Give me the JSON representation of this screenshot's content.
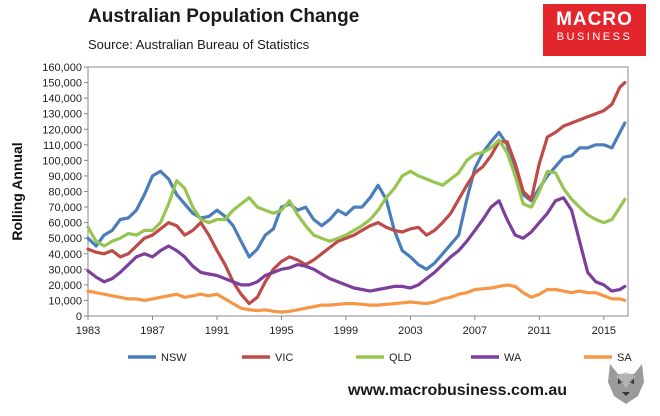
{
  "header": {
    "title": "Australian Population Change",
    "subtitle": "Source: Australian Bureau of Statistics"
  },
  "logo": {
    "line1": "MACRO",
    "line2": "BUSINESS",
    "color": "#e3262b"
  },
  "footer": {
    "url": "www.macrobusiness.com.au"
  },
  "icons": {
    "mascot": "wolf-mascot-icon"
  },
  "chart_data": {
    "type": "line",
    "title": "Australian Population Change",
    "subtitle": "Source: Australian Bureau of Statistics",
    "xlabel": "",
    "ylabel": "Rolling Annual",
    "xlim": [
      1983,
      2016.5
    ],
    "ylim": [
      0,
      160000
    ],
    "yticks": [
      0,
      10000,
      20000,
      30000,
      40000,
      50000,
      60000,
      70000,
      80000,
      90000,
      100000,
      110000,
      120000,
      130000,
      140000,
      150000,
      160000
    ],
    "ytick_labels": [
      "0",
      "10,000",
      "20,000",
      "30,000",
      "40,000",
      "50,000",
      "60,000",
      "70,000",
      "80,000",
      "90,000",
      "100,000",
      "110,000",
      "120,000",
      "130,000",
      "140,000",
      "150,000",
      "160,000"
    ],
    "xticks": [
      1983,
      1987,
      1991,
      1995,
      1999,
      2003,
      2007,
      2011,
      2015
    ],
    "xtick_labels": [
      "1983",
      "1987",
      "1991",
      "1995",
      "1999",
      "2003",
      "2007",
      "2011",
      "2015"
    ],
    "grid": false,
    "legend": "bottom",
    "series": [
      {
        "name": "NSW",
        "color": "#4a7ebb",
        "x": [
          1983,
          1983.5,
          1984,
          1984.5,
          1985,
          1985.5,
          1986,
          1986.5,
          1987,
          1987.5,
          1988,
          1988.5,
          1989,
          1989.5,
          1990,
          1990.5,
          1991,
          1991.5,
          1992,
          1992.5,
          1993,
          1993.5,
          1994,
          1994.5,
          1995,
          1995.5,
          1996,
          1996.5,
          1997,
          1997.5,
          1998,
          1998.5,
          1999,
          1999.5,
          2000,
          2000.5,
          2001,
          2001.5,
          2002,
          2002.5,
          2003,
          2003.5,
          2004,
          2004.5,
          2005,
          2005.5,
          2006,
          2006.5,
          2007,
          2007.5,
          2008,
          2008.5,
          2009,
          2009.5,
          2010,
          2010.5,
          2011,
          2011.5,
          2012,
          2012.5,
          2013,
          2013.5,
          2014,
          2014.5,
          2015,
          2015.5,
          2016,
          2016.3
        ],
        "values": [
          50000,
          45000,
          52000,
          55000,
          62000,
          63000,
          68000,
          78000,
          90000,
          93000,
          88000,
          78000,
          72000,
          66000,
          63000,
          64000,
          68000,
          64000,
          58000,
          48000,
          38000,
          43000,
          52000,
          56000,
          70000,
          72000,
          68000,
          70000,
          62000,
          58000,
          62000,
          68000,
          65000,
          70000,
          70000,
          76000,
          84000,
          75000,
          55000,
          42000,
          38000,
          33000,
          30000,
          34000,
          40000,
          46000,
          52000,
          75000,
          95000,
          105000,
          112000,
          118000,
          110000,
          92000,
          78000,
          74000,
          82000,
          90000,
          96000,
          102000,
          103000,
          108000,
          108000,
          110000,
          110000,
          108000,
          118000,
          124000
        ]
      },
      {
        "name": "VIC",
        "color": "#be4b48",
        "x": [
          1983,
          1983.5,
          1984,
          1984.5,
          1985,
          1985.5,
          1986,
          1986.5,
          1987,
          1987.5,
          1988,
          1988.5,
          1989,
          1989.5,
          1990,
          1990.5,
          1991,
          1991.5,
          1992,
          1992.5,
          1993,
          1993.5,
          1994,
          1994.5,
          1995,
          1995.5,
          1996,
          1996.5,
          1997,
          1997.5,
          1998,
          1998.5,
          1999,
          1999.5,
          2000,
          2000.5,
          2001,
          2001.5,
          2002,
          2002.5,
          2003,
          2003.5,
          2004,
          2004.5,
          2005,
          2005.5,
          2006,
          2006.5,
          2007,
          2007.5,
          2008,
          2008.5,
          2009,
          2009.5,
          2010,
          2010.5,
          2011,
          2011.5,
          2012,
          2012.5,
          2013,
          2013.5,
          2014,
          2014.5,
          2015,
          2015.5,
          2016,
          2016.3
        ],
        "values": [
          43000,
          41000,
          40000,
          42000,
          38000,
          40000,
          45000,
          50000,
          52000,
          56000,
          60000,
          58000,
          52000,
          55000,
          60000,
          52000,
          42000,
          33000,
          22000,
          14000,
          8000,
          12000,
          22000,
          30000,
          35000,
          38000,
          36000,
          33000,
          36000,
          40000,
          44000,
          48000,
          50000,
          52000,
          55000,
          58000,
          60000,
          57000,
          55000,
          54000,
          56000,
          57000,
          52000,
          55000,
          60000,
          66000,
          75000,
          84000,
          92000,
          96000,
          103000,
          112000,
          112000,
          98000,
          80000,
          75000,
          98000,
          115000,
          118000,
          122000,
          124000,
          126000,
          128000,
          130000,
          132000,
          136000,
          147000,
          150000
        ]
      },
      {
        "name": "QLD",
        "color": "#98c552",
        "x": [
          1983,
          1983.5,
          1984,
          1984.5,
          1985,
          1985.5,
          1986,
          1986.5,
          1987,
          1987.5,
          1988,
          1988.5,
          1989,
          1989.5,
          1990,
          1990.5,
          1991,
          1991.5,
          1992,
          1992.5,
          1993,
          1993.5,
          1994,
          1994.5,
          1995,
          1995.5,
          1996,
          1996.5,
          1997,
          1997.5,
          1998,
          1998.5,
          1999,
          1999.5,
          2000,
          2000.5,
          2001,
          2001.5,
          2002,
          2002.5,
          2003,
          2003.5,
          2004,
          2004.5,
          2005,
          2005.5,
          2006,
          2006.5,
          2007,
          2007.5,
          2008,
          2008.5,
          2009,
          2009.5,
          2010,
          2010.5,
          2011,
          2011.5,
          2012,
          2012.5,
          2013,
          2013.5,
          2014,
          2014.5,
          2015,
          2015.5,
          2016,
          2016.3
        ],
        "values": [
          57000,
          48000,
          45000,
          48000,
          50000,
          53000,
          52000,
          55000,
          55000,
          60000,
          72000,
          87000,
          82000,
          70000,
          62000,
          60000,
          62000,
          62000,
          68000,
          72000,
          76000,
          70000,
          68000,
          66000,
          68000,
          74000,
          65000,
          58000,
          52000,
          50000,
          48000,
          50000,
          52000,
          55000,
          58000,
          62000,
          68000,
          76000,
          82000,
          90000,
          93000,
          90000,
          88000,
          86000,
          84000,
          88000,
          92000,
          100000,
          104000,
          105000,
          108000,
          113000,
          105000,
          90000,
          72000,
          70000,
          80000,
          93000,
          92000,
          82000,
          75000,
          70000,
          65000,
          62000,
          60000,
          62000,
          70000,
          75000
        ]
      },
      {
        "name": "WA",
        "color": "#7d3f9c",
        "x": [
          1983,
          1983.5,
          1984,
          1984.5,
          1985,
          1985.5,
          1986,
          1986.5,
          1987,
          1987.5,
          1988,
          1988.5,
          1989,
          1989.5,
          1990,
          1990.5,
          1991,
          1991.5,
          1992,
          1992.5,
          1993,
          1993.5,
          1994,
          1994.5,
          1995,
          1995.5,
          1996,
          1996.5,
          1997,
          1997.5,
          1998,
          1998.5,
          1999,
          1999.5,
          2000,
          2000.5,
          2001,
          2001.5,
          2002,
          2002.5,
          2003,
          2003.5,
          2004,
          2004.5,
          2005,
          2005.5,
          2006,
          2006.5,
          2007,
          2007.5,
          2008,
          2008.5,
          2009,
          2009.5,
          2010,
          2010.5,
          2011,
          2011.5,
          2012,
          2012.5,
          2013,
          2013.5,
          2014,
          2014.5,
          2015,
          2015.5,
          2016,
          2016.3
        ],
        "values": [
          29000,
          25000,
          22000,
          24000,
          28000,
          33000,
          38000,
          40000,
          38000,
          42000,
          45000,
          42000,
          38000,
          32000,
          28000,
          27000,
          26000,
          24000,
          22000,
          20000,
          20000,
          22000,
          26000,
          28000,
          30000,
          31000,
          33000,
          32000,
          30000,
          27000,
          24000,
          22000,
          20000,
          18000,
          17000,
          16000,
          17000,
          18000,
          19000,
          19000,
          18000,
          20000,
          24000,
          28000,
          33000,
          38000,
          42000,
          48000,
          55000,
          62000,
          70000,
          74000,
          62000,
          52000,
          50000,
          54000,
          60000,
          66000,
          74000,
          76000,
          68000,
          48000,
          28000,
          22000,
          20000,
          16000,
          17000,
          19000
        ]
      },
      {
        "name": "SA",
        "color": "#f79646",
        "x": [
          1983,
          1983.5,
          1984,
          1984.5,
          1985,
          1985.5,
          1986,
          1986.5,
          1987,
          1987.5,
          1988,
          1988.5,
          1989,
          1989.5,
          1990,
          1990.5,
          1991,
          1991.5,
          1992,
          1992.5,
          1993,
          1993.5,
          1994,
          1994.5,
          1995,
          1995.5,
          1996,
          1996.5,
          1997,
          1997.5,
          1998,
          1998.5,
          1999,
          1999.5,
          2000,
          2000.5,
          2001,
          2001.5,
          2002,
          2002.5,
          2003,
          2003.5,
          2004,
          2004.5,
          2005,
          2005.5,
          2006,
          2006.5,
          2007,
          2007.5,
          2008,
          2008.5,
          2009,
          2009.5,
          2010,
          2010.5,
          2011,
          2011.5,
          2012,
          2012.5,
          2013,
          2013.5,
          2014,
          2014.5,
          2015,
          2015.5,
          2016,
          2016.3
        ],
        "values": [
          16000,
          15000,
          14000,
          13000,
          12000,
          11000,
          11000,
          10000,
          11000,
          12000,
          13000,
          14000,
          12000,
          13000,
          14000,
          13000,
          14000,
          11000,
          8000,
          5000,
          4000,
          3500,
          4000,
          3000,
          2500,
          3000,
          4000,
          5000,
          6000,
          7000,
          7000,
          7500,
          8000,
          8000,
          7500,
          7000,
          7000,
          7500,
          8000,
          8500,
          9000,
          8500,
          8000,
          9000,
          11000,
          12000,
          14000,
          15000,
          17000,
          17500,
          18000,
          19000,
          20000,
          19000,
          15000,
          12000,
          14000,
          17000,
          17000,
          16000,
          15000,
          16000,
          15000,
          15000,
          13000,
          11000,
          11000,
          10000
        ]
      }
    ]
  }
}
